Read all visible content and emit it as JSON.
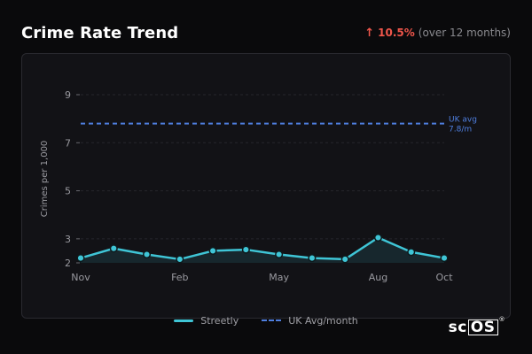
{
  "header": {
    "title": "Crime Rate Trend",
    "change_arrow": "↑",
    "change_pct": "10.5%",
    "change_period": "(over 12 months)"
  },
  "legend": {
    "series_label": "Streetly",
    "avg_label": "UK Avg/month"
  },
  "brand": {
    "text_plain": "sc",
    "text_boxed": "OS",
    "mark": "®"
  },
  "colors": {
    "series": "#3fc5d6",
    "avg": "#4f7fe0",
    "change": "#f0564b"
  },
  "chart_data": {
    "type": "line",
    "ylabel": "Crimes per 1,000",
    "xlabel": "",
    "ylim": [
      2,
      9
    ],
    "yticks": [
      2,
      3,
      5,
      7,
      9
    ],
    "x_ticks": [
      {
        "index": 0,
        "label": "Nov"
      },
      {
        "index": 3,
        "label": "Feb"
      },
      {
        "index": 6,
        "label": "May"
      },
      {
        "index": 9,
        "label": "Aug"
      },
      {
        "index": 11,
        "label": "Oct"
      }
    ],
    "series": [
      {
        "name": "Streetly",
        "values": [
          2.2,
          2.6,
          2.35,
          2.15,
          2.5,
          2.55,
          2.35,
          2.2,
          2.15,
          3.05,
          2.45,
          2.2
        ]
      }
    ],
    "reference": {
      "name": "UK Avg/month",
      "value": 7.8,
      "label_line1": "UK avg",
      "label_line2": "7.8/m"
    },
    "grid": true
  }
}
